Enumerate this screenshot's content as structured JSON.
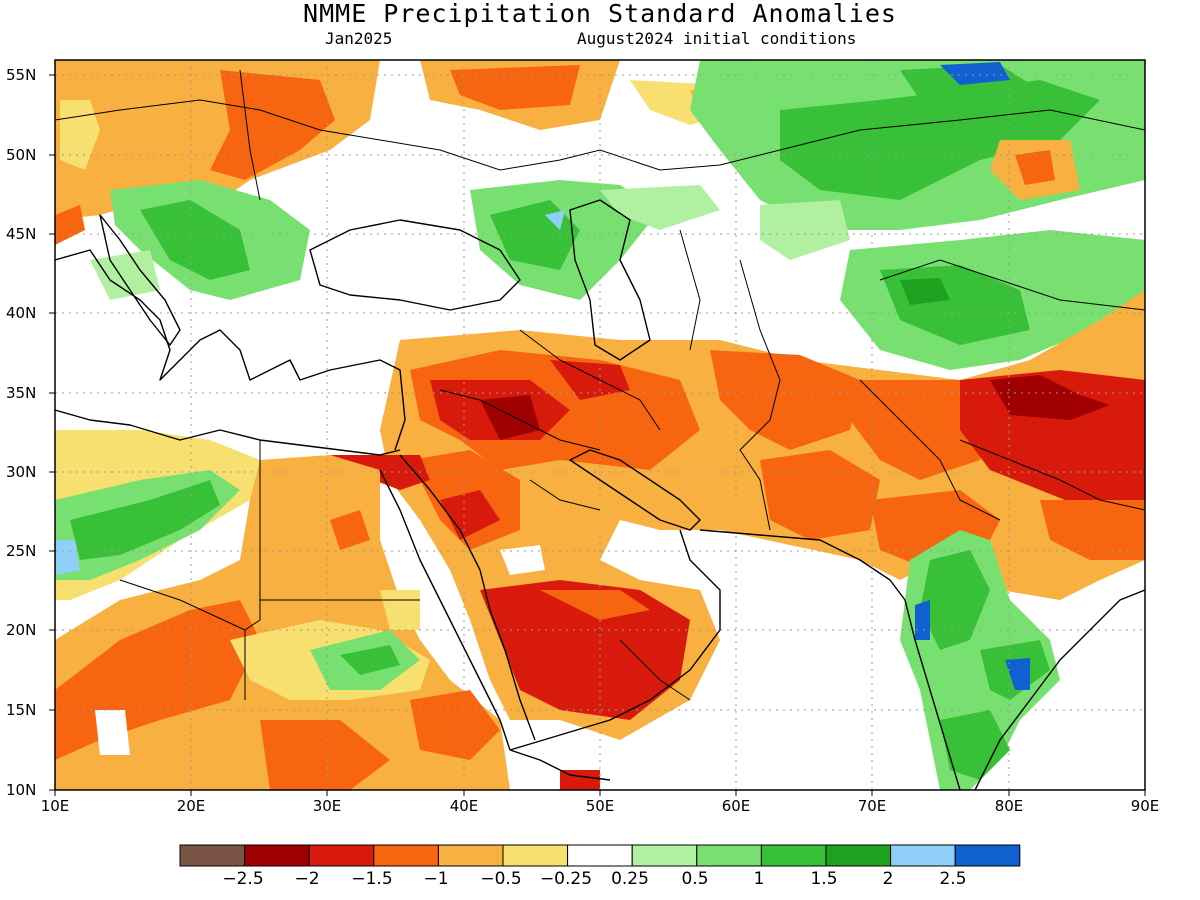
{
  "title": "NMME Precipitation Standard Anomalies",
  "subtitle_left": "Jan2025",
  "subtitle_right": "August2024 initial conditions",
  "lat_labels": [
    "55N",
    "50N",
    "45N",
    "40N",
    "35N",
    "30N",
    "25N",
    "20N",
    "15N",
    "10N"
  ],
  "lon_labels": [
    "10E",
    "20E",
    "30E",
    "40E",
    "50E",
    "60E",
    "70E",
    "80E",
    "90E"
  ],
  "colorbar": {
    "colors": [
      "#7a5545",
      "#a00000",
      "#d81a0c",
      "#f86510",
      "#f8b040",
      "#f8e070",
      "#ffffff",
      "#b0f0a0",
      "#78e070",
      "#38c038",
      "#20a020",
      "#90d0f8",
      "#1060d0"
    ],
    "labels": [
      "−2.5",
      "−2",
      "−1.5",
      "−1",
      "−0.5",
      "−0.25",
      "0.25",
      "0.5",
      "1",
      "1.5",
      "2",
      "2.5"
    ]
  },
  "colors": {
    "land_outline": "#000000",
    "grid": "#9a9a9a"
  }
}
